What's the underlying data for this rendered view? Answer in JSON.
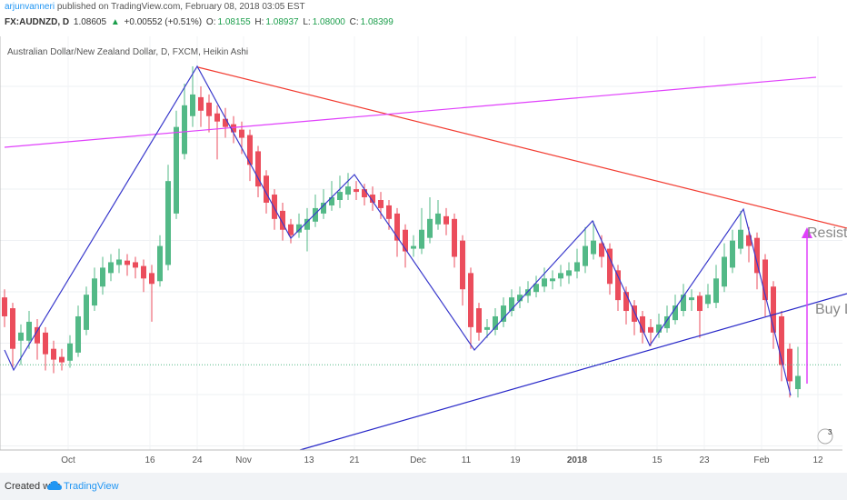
{
  "header": {
    "author": "arjunvanneri",
    "published": "published on TradingView.com, February 08, 2018 03:05 EST",
    "symbol": "FX:AUDNZD, D",
    "arrow": "▲",
    "change": "+0.00552 (+0.51%)",
    "o_label": "O:",
    "o": "1.08155",
    "h_label": "H:",
    "h": "1.08937",
    "l_label": "L:",
    "l": "1.08000",
    "c_label": "C:",
    "c": "1.08399"
  },
  "chart_data": {
    "type": "candlestick",
    "title": "Australian Dollar/New Zealand Dollar, D, FXCM, Heikin Ashi",
    "up_color": "#53b987",
    "down_color": "#eb4d5c",
    "last": 1.08605,
    "ylim": [
      1.0703,
      1.1459
    ],
    "xticks": [
      "Oct",
      "16",
      "24",
      "Nov",
      "13",
      "21",
      "Dec",
      "11",
      "19",
      "2018",
      "15",
      "23",
      "Feb",
      "12"
    ],
    "annotations": [
      "Resista",
      "Buy L"
    ],
    "badge": "3",
    "ohlc": [
      [
        1.0985,
        1.1,
        1.093,
        1.095
      ],
      [
        1.0965,
        1.0975,
        1.0855,
        1.089
      ],
      [
        1.0905,
        1.0935,
        1.086,
        1.092
      ],
      [
        1.0905,
        1.096,
        1.089,
        1.094
      ],
      [
        1.093,
        1.0945,
        1.087,
        1.09
      ],
      [
        1.092,
        1.093,
        1.085,
        1.088
      ],
      [
        1.089,
        1.0905,
        1.0845,
        1.087
      ],
      [
        1.0875,
        1.089,
        1.085,
        1.0865
      ],
      [
        1.0868,
        1.0915,
        1.0855,
        1.09
      ],
      [
        1.0883,
        1.097,
        1.0875,
        1.095
      ],
      [
        1.0925,
        1.1005,
        1.0915,
        1.099
      ],
      [
        1.097,
        1.104,
        1.096,
        1.102
      ],
      [
        1.1005,
        1.106,
        1.099,
        1.104
      ],
      [
        1.103,
        1.1065,
        1.1015,
        1.105
      ],
      [
        1.1045,
        1.1075,
        1.103,
        1.1055
      ],
      [
        1.1053,
        1.1065,
        1.1025,
        1.1045
      ],
      [
        1.105,
        1.106,
        1.102,
        1.104
      ],
      [
        1.1043,
        1.1055,
        1.0995,
        1.102
      ],
      [
        1.103,
        1.1045,
        1.094,
        1.101
      ],
      [
        1.1015,
        1.11,
        1.1005,
        1.108
      ],
      [
        1.1045,
        1.123,
        1.1035,
        1.12
      ],
      [
        1.114,
        1.133,
        1.113,
        1.13
      ],
      [
        1.125,
        1.138,
        1.124,
        1.134
      ],
      [
        1.132,
        1.1412,
        1.13,
        1.136
      ],
      [
        1.1355,
        1.1375,
        1.13,
        1.133
      ],
      [
        1.1345,
        1.136,
        1.129,
        1.132
      ],
      [
        1.1325,
        1.134,
        1.124,
        1.131
      ],
      [
        1.1315,
        1.1335,
        1.128,
        1.13
      ],
      [
        1.1305,
        1.132,
        1.127,
        1.129
      ],
      [
        1.1295,
        1.131,
        1.125,
        1.128
      ],
      [
        1.1285,
        1.1295,
        1.12,
        1.123
      ],
      [
        1.1255,
        1.1265,
        1.117,
        1.119
      ],
      [
        1.121,
        1.122,
        1.114,
        1.116
      ],
      [
        1.1175,
        1.1185,
        1.111,
        1.113
      ],
      [
        1.1145,
        1.116,
        1.109,
        1.111
      ],
      [
        1.112,
        1.113,
        1.1085,
        1.11
      ],
      [
        1.1105,
        1.114,
        1.1095,
        1.112
      ],
      [
        1.111,
        1.115,
        1.107,
        1.113
      ],
      [
        1.1125,
        1.1175,
        1.1115,
        1.115
      ],
      [
        1.114,
        1.1185,
        1.113,
        1.116
      ],
      [
        1.1155,
        1.12,
        1.1145,
        1.117
      ],
      [
        1.1165,
        1.121,
        1.115,
        1.118
      ],
      [
        1.1175,
        1.1215,
        1.1165,
        1.119
      ],
      [
        1.1185,
        1.12,
        1.1165,
        1.118
      ],
      [
        1.1185,
        1.1195,
        1.1155,
        1.117
      ],
      [
        1.1175,
        1.119,
        1.1145,
        1.116
      ],
      [
        1.1165,
        1.118,
        1.113,
        1.115
      ],
      [
        1.1155,
        1.1165,
        1.111,
        1.113
      ],
      [
        1.114,
        1.115,
        1.106,
        1.109
      ],
      [
        1.111,
        1.112,
        1.104,
        1.107
      ],
      [
        1.1075,
        1.11,
        1.106,
        1.108
      ],
      [
        1.1075,
        1.115,
        1.1065,
        1.111
      ],
      [
        1.1095,
        1.117,
        1.1085,
        1.113
      ],
      [
        1.112,
        1.1165,
        1.111,
        1.114
      ],
      [
        1.1135,
        1.115,
        1.11,
        1.112
      ],
      [
        1.113,
        1.114,
        1.104,
        1.106
      ],
      [
        1.109,
        1.11,
        1.097,
        1.1
      ],
      [
        1.103,
        1.104,
        1.089,
        1.093
      ],
      [
        1.0965,
        1.0975,
        1.0905,
        1.092
      ],
      [
        1.0925,
        1.0945,
        1.091,
        1.093
      ],
      [
        1.0925,
        1.0965,
        1.0915,
        1.095
      ],
      [
        1.094,
        1.0985,
        1.093,
        1.097
      ],
      [
        1.096,
        1.1,
        1.095,
        1.0985
      ],
      [
        1.0978,
        1.1005,
        1.0965,
        1.099
      ],
      [
        1.0988,
        1.1015,
        1.0975,
        1.1
      ],
      [
        1.0995,
        1.1025,
        1.0985,
        1.101
      ],
      [
        1.1005,
        1.104,
        1.0995,
        1.102
      ],
      [
        1.1015,
        1.1035,
        1.1,
        1.102
      ],
      [
        1.102,
        1.1045,
        1.1005,
        1.103
      ],
      [
        1.1025,
        1.105,
        1.101,
        1.1035
      ],
      [
        1.1033,
        1.1075,
        1.102,
        1.105
      ],
      [
        1.1043,
        1.1115,
        1.103,
        1.108
      ],
      [
        1.1065,
        1.1126,
        1.1055,
        1.109
      ],
      [
        1.1085,
        1.11,
        1.104,
        1.106
      ],
      [
        1.1075,
        1.1085,
        1.099,
        1.101
      ],
      [
        1.1035,
        1.1045,
        1.096,
        1.098
      ],
      [
        1.0995,
        1.1005,
        1.0935,
        1.096
      ],
      [
        1.097,
        1.098,
        1.0915,
        1.094
      ],
      [
        1.095,
        1.096,
        1.09,
        1.092
      ],
      [
        1.093,
        1.0945,
        1.0895,
        1.092
      ],
      [
        1.092,
        1.0955,
        1.091,
        1.0935
      ],
      [
        1.0928,
        1.097,
        1.092,
        1.095
      ],
      [
        1.0943,
        1.099,
        1.0935,
        1.097
      ],
      [
        1.096,
        1.101,
        1.095,
        1.099
      ],
      [
        1.098,
        1.1,
        1.096,
        1.0985
      ],
      [
        1.0988,
        1.0995,
        1.091,
        1.096
      ],
      [
        1.0973,
        1.101,
        1.0965,
        1.099
      ],
      [
        1.0975,
        1.1045,
        1.0965,
        1.102
      ],
      [
        1.1005,
        1.1085,
        1.0995,
        1.106
      ],
      [
        1.104,
        1.111,
        1.103,
        1.109
      ],
      [
        1.1075,
        1.1145,
        1.1065,
        1.111
      ],
      [
        1.11,
        1.1115,
        1.105,
        1.108
      ],
      [
        1.1095,
        1.1105,
        1.1,
        1.103
      ],
      [
        1.1055,
        1.1065,
        1.095,
        1.098
      ],
      [
        1.1005,
        1.1015,
        1.089,
        1.092
      ],
      [
        1.095,
        1.096,
        1.083,
        1.086
      ],
      [
        1.089,
        1.09,
        1.08,
        1.083
      ],
      [
        1.08155,
        1.08937,
        1.08,
        1.08399
      ]
    ]
  },
  "footer": {
    "created": "Created with",
    "brand": "TradingView"
  }
}
